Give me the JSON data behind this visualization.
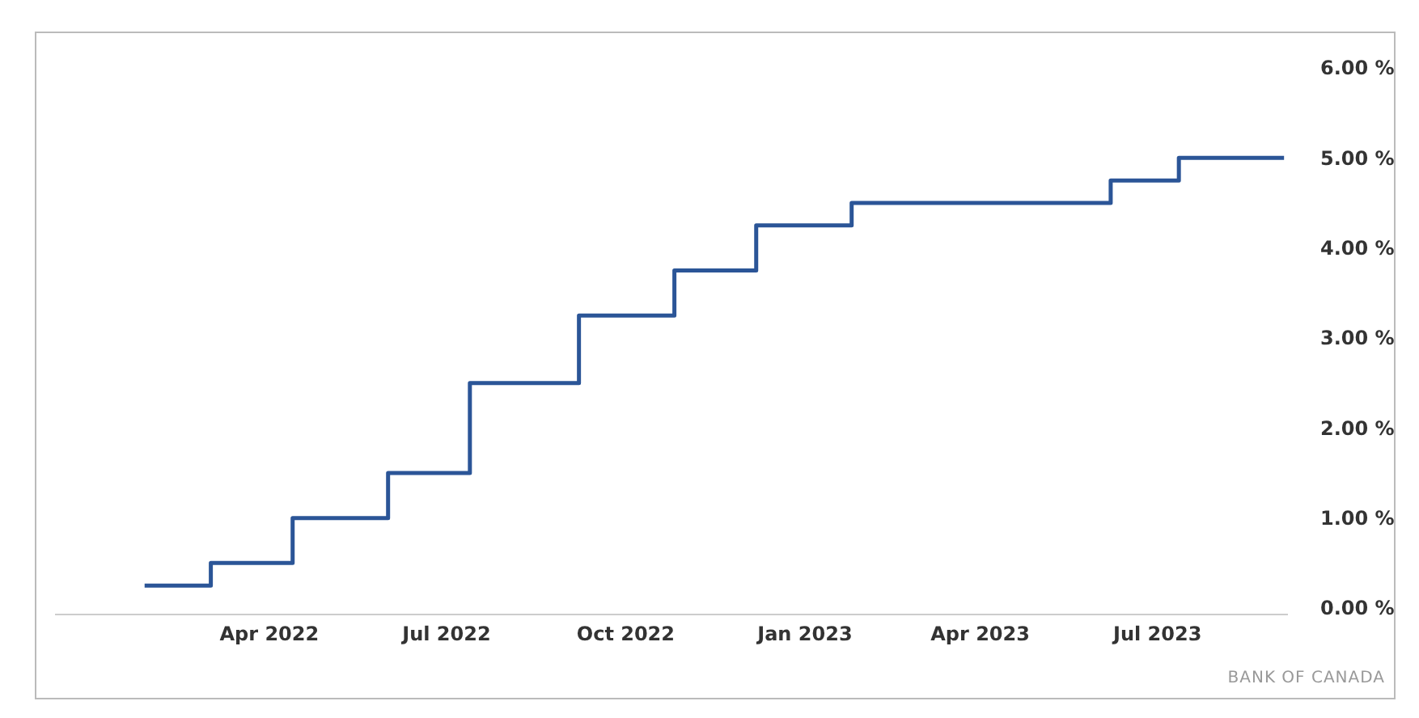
{
  "chart_data": {
    "type": "step",
    "x": [
      "2022-01-27",
      "2022-03-02",
      "2022-04-13",
      "2022-06-01",
      "2022-07-13",
      "2022-09-07",
      "2022-10-26",
      "2022-12-07",
      "2023-01-25",
      "2023-06-07",
      "2023-07-12",
      "2023-09-04"
    ],
    "series": [
      {
        "color": "#2b5597",
        "values": [
          0.25,
          0.5,
          1.0,
          1.5,
          2.5,
          3.25,
          3.75,
          4.25,
          4.5,
          4.75,
          5.0,
          5.0
        ]
      }
    ],
    "xlim": [
      "2021-12-12",
      "2023-09-06"
    ],
    "xticks": [
      {
        "value": "2022-04-01",
        "label": "Apr 2022"
      },
      {
        "value": "2022-07-01",
        "label": "Jul 2022"
      },
      {
        "value": "2022-10-01",
        "label": "Oct 2022"
      },
      {
        "value": "2023-01-01",
        "label": "Jan 2023"
      },
      {
        "value": "2023-04-01",
        "label": "Apr 2023"
      },
      {
        "value": "2023-07-01",
        "label": "Jul 2023"
      }
    ],
    "ylim": [
      0,
      6
    ],
    "yticks": [
      {
        "value": 0,
        "label": "0.00 %"
      },
      {
        "value": 1,
        "label": "1.00 %"
      },
      {
        "value": 2,
        "label": "2.00 %"
      },
      {
        "value": 3,
        "label": "3.00 %"
      },
      {
        "value": 4,
        "label": "4.00 %"
      },
      {
        "value": 5,
        "label": "5.00 %"
      },
      {
        "value": 6,
        "label": "6.00 %"
      }
    ],
    "grid": false,
    "annotations": [
      "BANK OF CANADA"
    ]
  }
}
